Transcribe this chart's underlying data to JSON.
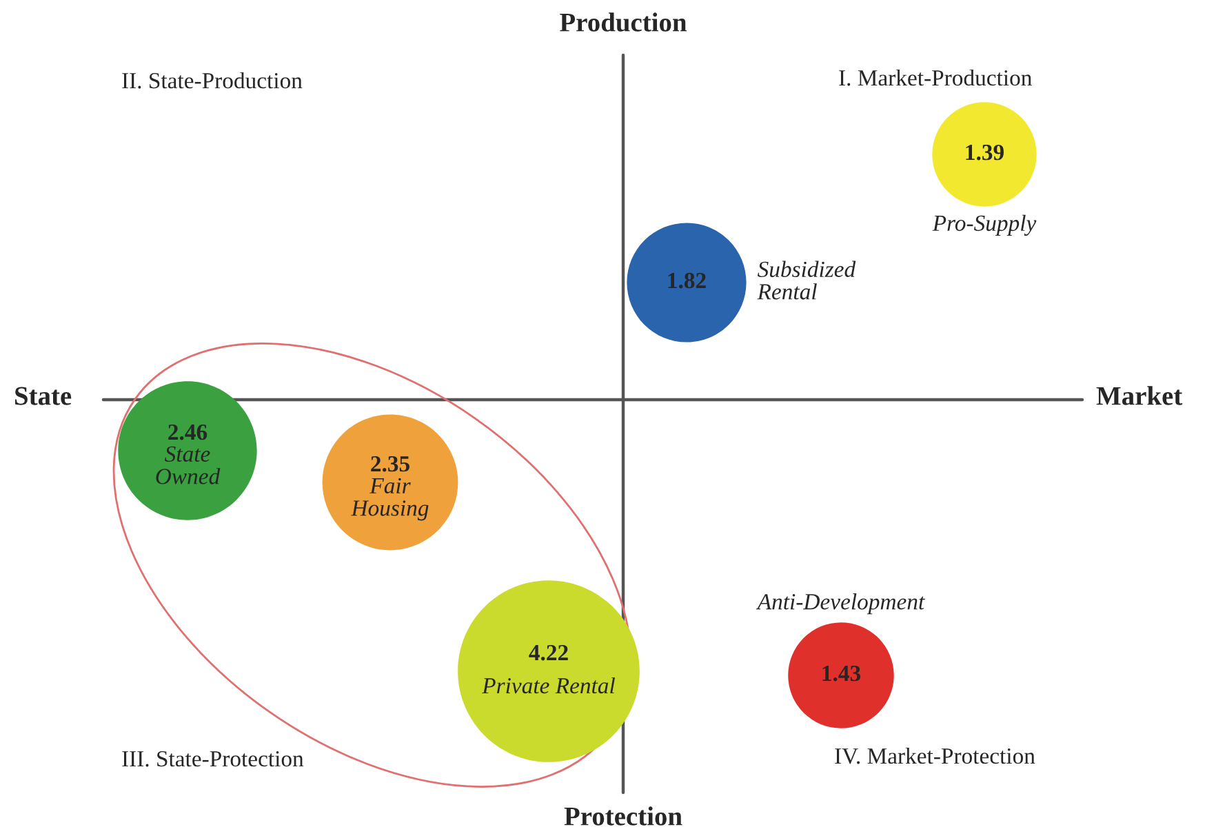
{
  "chart_data": {
    "type": "other",
    "data_labels": true,
    "annotations": [
      "Production",
      "State",
      "Market",
      "Protection",
      "I. Market-Production",
      "II. State-Production",
      "III. State-Protection",
      "IV. Market-Protection"
    ],
    "categories": [
      "Pro-Supply",
      "Subsidized\nRental",
      "State\nOwned",
      "Fair\nHousing",
      "Private Rental",
      "Anti-Development"
    ],
    "values": [
      1.39,
      1.82,
      2.46,
      2.35,
      4.22,
      1.43
    ],
    "colors": [
      "#f2e830",
      "#2a64ad",
      "#3aa040",
      "#efa23c",
      "#cadb2e",
      "#e0302c"
    ]
  }
}
